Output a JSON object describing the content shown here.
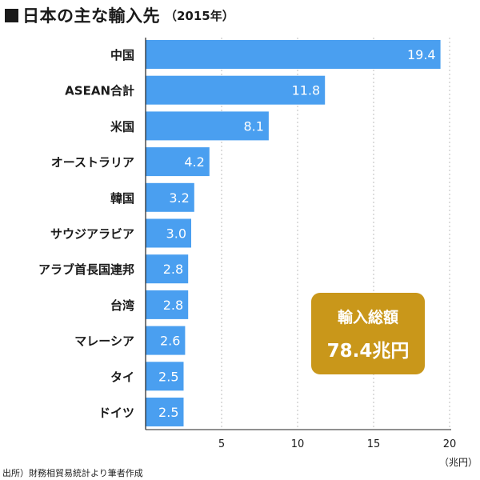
{
  "title": {
    "main": "日本の主な輸入先",
    "year": "（2015年）"
  },
  "source": "出所）財務相貿易統計より筆者作成",
  "total": {
    "label": "輸入総額",
    "value": "78.4兆円"
  },
  "colors": {
    "bar": "#4a9ff0",
    "box": "#c9971a",
    "grid": "#bbbbbb",
    "axis": "#222222"
  },
  "chart_data": {
    "type": "bar",
    "orientation": "horizontal",
    "categories": [
      "中国",
      "ASEAN合計",
      "米国",
      "オーストラリア",
      "韓国",
      "サウジアラビア",
      "アラブ首長国連邦",
      "台湾",
      "マレーシア",
      "タイ",
      "ドイツ"
    ],
    "values": [
      19.4,
      11.8,
      8.1,
      4.2,
      3.2,
      3.0,
      2.8,
      2.8,
      2.6,
      2.5,
      2.5
    ],
    "value_labels": [
      "19.4",
      "11.8",
      "8.1",
      "4.2",
      "3.2",
      "3.0",
      "2.8",
      "2.8",
      "2.6",
      "2.5",
      "2.5"
    ],
    "xlim": [
      0,
      20
    ],
    "xticks": [
      5,
      10,
      15,
      20
    ],
    "xtick_labels": [
      "5",
      "10",
      "15",
      "20"
    ],
    "x_unit": "（兆円）",
    "grid": "vertical-dashed",
    "legend": "none"
  }
}
